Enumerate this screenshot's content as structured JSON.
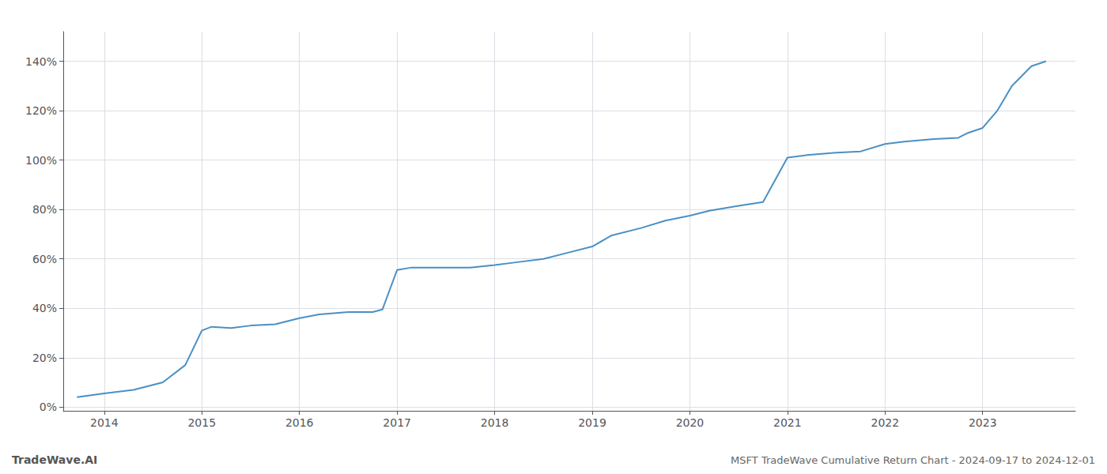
{
  "chart_data": {
    "type": "line",
    "title": "MSFT TradeWave Cumulative Return Chart - 2024-09-17 to 2024-12-01",
    "annotations": [
      "TradeWave.AI"
    ],
    "color": "#4a90c4",
    "x": [
      2013.72,
      2014.0,
      2014.3,
      2014.6,
      2014.83,
      2015.0,
      2015.1,
      2015.3,
      2015.5,
      2015.75,
      2016.0,
      2016.2,
      2016.5,
      2016.75,
      2016.85,
      2017.0,
      2017.15,
      2017.3,
      2017.5,
      2017.75,
      2018.0,
      2018.2,
      2018.5,
      2018.75,
      2019.0,
      2019.2,
      2019.5,
      2019.75,
      2020.0,
      2020.2,
      2020.5,
      2020.75,
      2021.0,
      2021.2,
      2021.5,
      2021.75,
      2022.0,
      2022.2,
      2022.5,
      2022.75,
      2022.85,
      2023.0,
      2023.15,
      2023.3,
      2023.5,
      2023.65
    ],
    "values": [
      0.04,
      0.055,
      0.07,
      0.1,
      0.17,
      0.31,
      0.325,
      0.32,
      0.33,
      0.335,
      0.36,
      0.375,
      0.385,
      0.385,
      0.395,
      0.555,
      0.565,
      0.565,
      0.565,
      0.565,
      0.575,
      0.585,
      0.6,
      0.625,
      0.65,
      0.695,
      0.725,
      0.755,
      0.775,
      0.795,
      0.815,
      0.83,
      1.01,
      1.02,
      1.03,
      1.035,
      1.065,
      1.075,
      1.085,
      1.09,
      1.11,
      1.13,
      1.2,
      1.3,
      1.38,
      1.4
    ],
    "xlim": [
      2013.58,
      2023.95
    ],
    "xticks": [
      2014,
      2015,
      2016,
      2017,
      2018,
      2019,
      2020,
      2021,
      2022,
      2023
    ],
    "ylim": [
      -0.015,
      1.52
    ],
    "yticks": [
      {
        "value": 0.0,
        "label": "0%"
      },
      {
        "value": 0.2,
        "label": "20%"
      },
      {
        "value": 0.4,
        "label": "40%"
      },
      {
        "value": 0.6,
        "label": "60%"
      },
      {
        "value": 0.8,
        "label": "80%"
      },
      {
        "value": 1.0,
        "label": "100%"
      },
      {
        "value": 1.2,
        "label": "120%"
      },
      {
        "value": 1.4,
        "label": "140%"
      }
    ],
    "grid": true
  }
}
